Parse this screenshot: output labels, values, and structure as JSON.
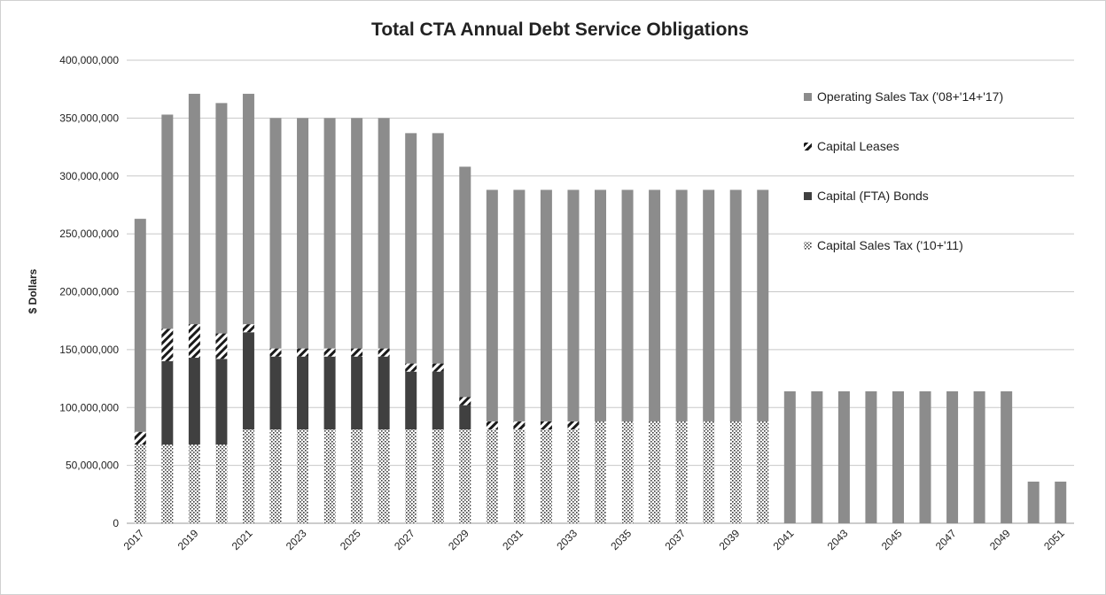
{
  "chart_data": {
    "type": "bar",
    "stacked": true,
    "title": "Total CTA Annual Debt Service Obligations",
    "ylabel": "$ Dollars",
    "xlabel": "",
    "ylim": [
      0,
      400000000
    ],
    "yticks": [
      0,
      50000000,
      100000000,
      150000000,
      200000000,
      250000000,
      300000000,
      350000000,
      400000000
    ],
    "ytick_labels": [
      "0",
      "50,000,000",
      "100,000,000",
      "150,000,000",
      "200,000,000",
      "250,000,000",
      "300,000,000",
      "350,000,000",
      "400,000,000"
    ],
    "grid": true,
    "legend_position": "right",
    "categories": [
      "2017",
      "2018",
      "2019",
      "2020",
      "2021",
      "2022",
      "2023",
      "2024",
      "2025",
      "2026",
      "2027",
      "2028",
      "2029",
      "2030",
      "2031",
      "2032",
      "2033",
      "2034",
      "2035",
      "2036",
      "2037",
      "2038",
      "2039",
      "2040",
      "2041",
      "2042",
      "2043",
      "2044",
      "2045",
      "2046",
      "2047",
      "2048",
      "2049",
      "2050",
      "2051"
    ],
    "xtick_labels": [
      "2017",
      "2019",
      "2021",
      "2023",
      "2025",
      "2027",
      "2029",
      "2031",
      "2033",
      "2035",
      "2037",
      "2039",
      "2041",
      "2043",
      "2045",
      "2047",
      "2049",
      "2051"
    ],
    "series": [
      {
        "name": "Capital Sales Tax ('10+'11)",
        "pattern": "dots",
        "values": [
          68000000,
          68000000,
          68000000,
          68000000,
          81000000,
          81000000,
          81000000,
          81000000,
          81000000,
          81000000,
          81000000,
          81000000,
          81000000,
          81000000,
          81000000,
          81000000,
          81000000,
          88000000,
          88000000,
          88000000,
          88000000,
          88000000,
          88000000,
          88000000,
          0,
          0,
          0,
          0,
          0,
          0,
          0,
          0,
          0,
          0,
          0
        ]
      },
      {
        "name": "Capital (FTA) Bonds",
        "pattern": "solid-dark",
        "values": [
          0,
          72000000,
          75000000,
          74000000,
          84000000,
          63000000,
          63000000,
          63000000,
          63000000,
          63000000,
          50000000,
          50000000,
          21000000,
          0,
          0,
          0,
          0,
          0,
          0,
          0,
          0,
          0,
          0,
          0,
          0,
          0,
          0,
          0,
          0,
          0,
          0,
          0,
          0,
          0,
          0
        ]
      },
      {
        "name": "Capital Leases",
        "pattern": "hatch",
        "values": [
          11000000,
          28000000,
          29000000,
          22000000,
          7000000,
          7000000,
          7000000,
          7000000,
          7000000,
          7000000,
          7000000,
          7000000,
          7000000,
          7000000,
          7000000,
          7000000,
          7000000,
          0,
          0,
          0,
          0,
          0,
          0,
          0,
          0,
          0,
          0,
          0,
          0,
          0,
          0,
          0,
          0,
          0,
          0
        ]
      },
      {
        "name": "Operating Sales Tax ('08+'14+'17)",
        "pattern": "solid-gray",
        "values": [
          184000000,
          185000000,
          199000000,
          199000000,
          199000000,
          199000000,
          199000000,
          199000000,
          199000000,
          199000000,
          199000000,
          199000000,
          199000000,
          200000000,
          200000000,
          200000000,
          200000000,
          200000000,
          200000000,
          200000000,
          200000000,
          200000000,
          200000000,
          200000000,
          114000000,
          114000000,
          114000000,
          114000000,
          114000000,
          114000000,
          114000000,
          114000000,
          114000000,
          36000000,
          36000000
        ]
      }
    ],
    "legend_order": [
      "Operating Sales Tax ('08+'14+'17)",
      "Capital Leases",
      "Capital (FTA) Bonds",
      "Capital Sales Tax ('10+'11)"
    ],
    "colors": {
      "operating": "#8c8c8c",
      "capital_bonds": "#404040",
      "hatch_fg": "#1a1a1a",
      "dots_fg": "#3a3a3a",
      "grid": "#c8c8c8",
      "axis": "#9a9a9a"
    }
  }
}
